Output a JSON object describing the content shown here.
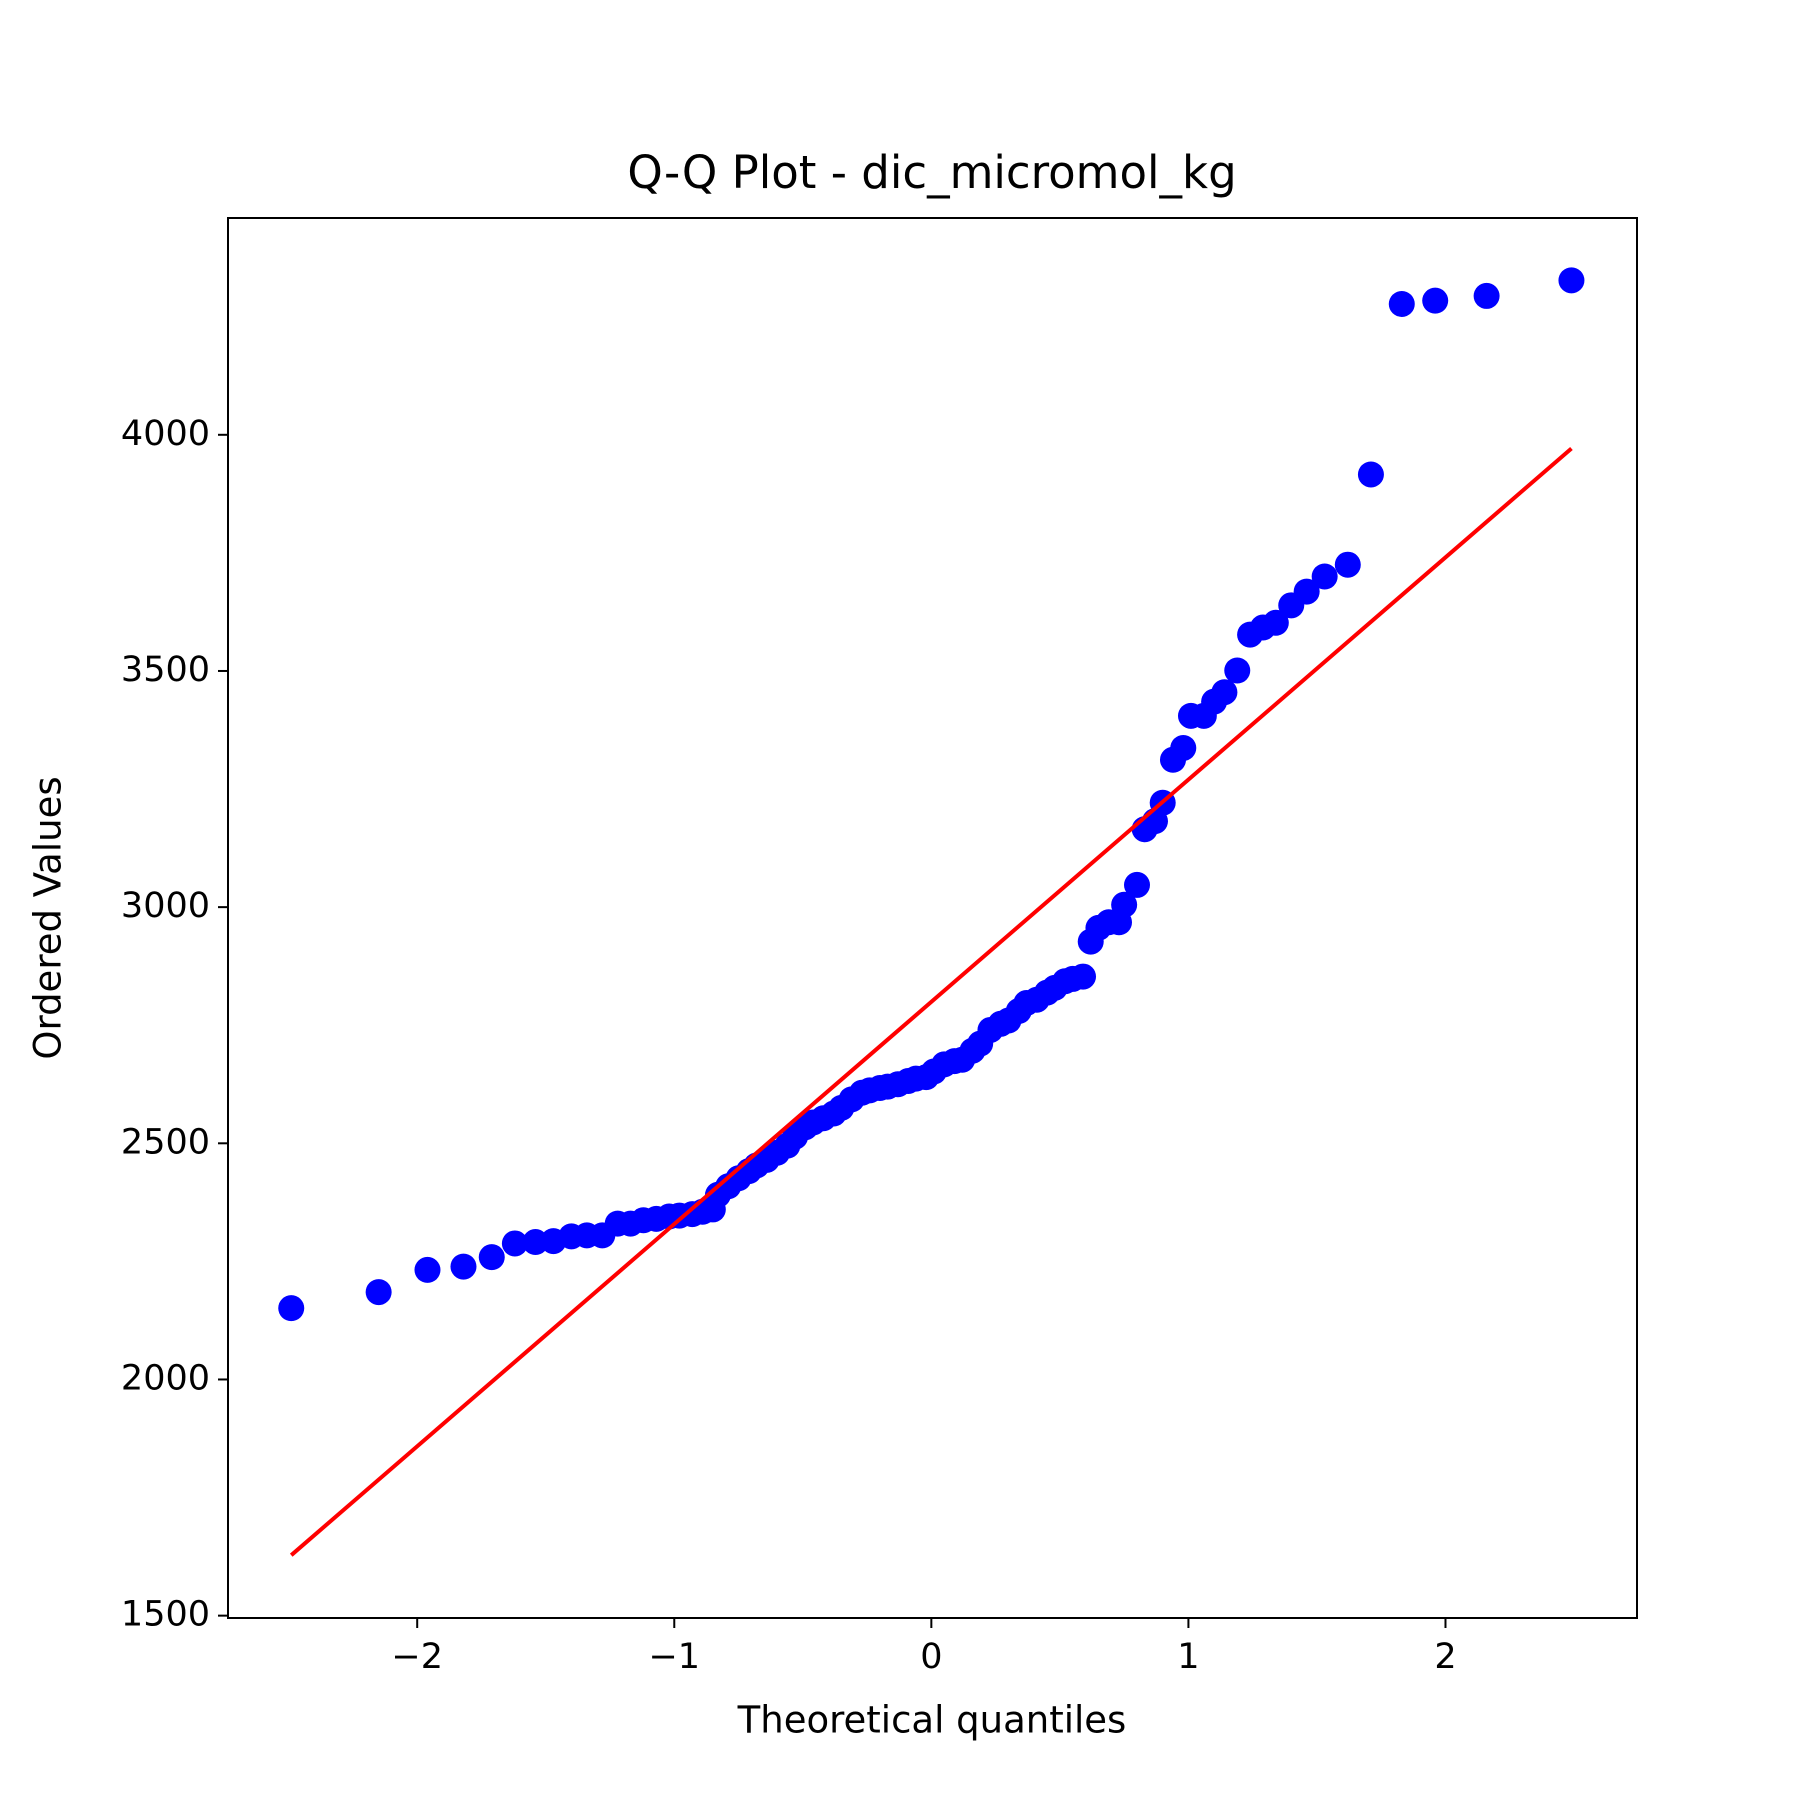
{
  "chart_data": {
    "type": "scatter",
    "title": "Q-Q Plot - dic_micromol_kg",
    "x_label": "Theoretical quantiles",
    "y_label": "Ordered Values",
    "color": "#0000ff",
    "x": [
      -2.49,
      -2.15,
      -1.96,
      -1.82,
      -1.71,
      -1.62,
      -1.54,
      -1.47,
      -1.4,
      -1.34,
      -1.28,
      -1.22,
      -1.17,
      -1.12,
      -1.07,
      -1.02,
      -0.98,
      -0.93,
      -0.89,
      -0.85,
      -0.83,
      -0.79,
      -0.75,
      -0.71,
      -0.68,
      -0.64,
      -0.6,
      -0.56,
      -0.53,
      -0.49,
      -0.46,
      -0.42,
      -0.38,
      -0.35,
      -0.31,
      -0.27,
      -0.24,
      -0.2,
      -0.17,
      -0.13,
      -0.09,
      -0.06,
      -0.02,
      0.01,
      0.05,
      0.09,
      0.12,
      0.16,
      0.19,
      0.23,
      0.27,
      0.3,
      0.34,
      0.37,
      0.41,
      0.45,
      0.48,
      0.52,
      0.55,
      0.59,
      0.62,
      0.65,
      0.69,
      0.73,
      0.75,
      0.8,
      0.83,
      0.87,
      0.9,
      0.94,
      0.98,
      1.01,
      1.06,
      1.1,
      1.14,
      1.19,
      1.24,
      1.29,
      1.34,
      1.4,
      1.46,
      1.53,
      1.62,
      1.71,
      1.83,
      1.96,
      2.16,
      2.49
    ],
    "y": [
      2151,
      2185,
      2232,
      2239,
      2259,
      2288,
      2291,
      2293,
      2303,
      2305,
      2305,
      2330,
      2330,
      2337,
      2340,
      2345,
      2347,
      2350,
      2355,
      2360,
      2391,
      2409,
      2426,
      2441,
      2453,
      2465,
      2480,
      2495,
      2514,
      2534,
      2544,
      2553,
      2563,
      2575,
      2593,
      2607,
      2612,
      2617,
      2620,
      2625,
      2632,
      2637,
      2640,
      2652,
      2667,
      2674,
      2677,
      2696,
      2711,
      2740,
      2753,
      2760,
      2780,
      2797,
      2804,
      2819,
      2829,
      2843,
      2848,
      2853,
      2927,
      2956,
      2968,
      2968,
      3005,
      3047,
      3165,
      3182,
      3221,
      3312,
      3337,
      3405,
      3405,
      3435,
      3455,
      3501,
      3577,
      3592,
      3602,
      3639,
      3668,
      3700,
      3725,
      3916,
      4277,
      4284,
      4294,
      4327
    ],
    "fit_line": {
      "x": [
        -2.49,
        2.49
      ],
      "y": [
        1628,
        3971
      ],
      "color": "#ff0000"
    },
    "xlim": [
      -2.736,
      2.745
    ],
    "ylim": [
      1495,
      4459
    ],
    "xticks": [
      {
        "value": -2,
        "label": "−2"
      },
      {
        "value": -1,
        "label": "−1"
      },
      0,
      1,
      2
    ],
    "yticks": [
      1500,
      2000,
      2500,
      3000,
      3500,
      4000
    ]
  }
}
